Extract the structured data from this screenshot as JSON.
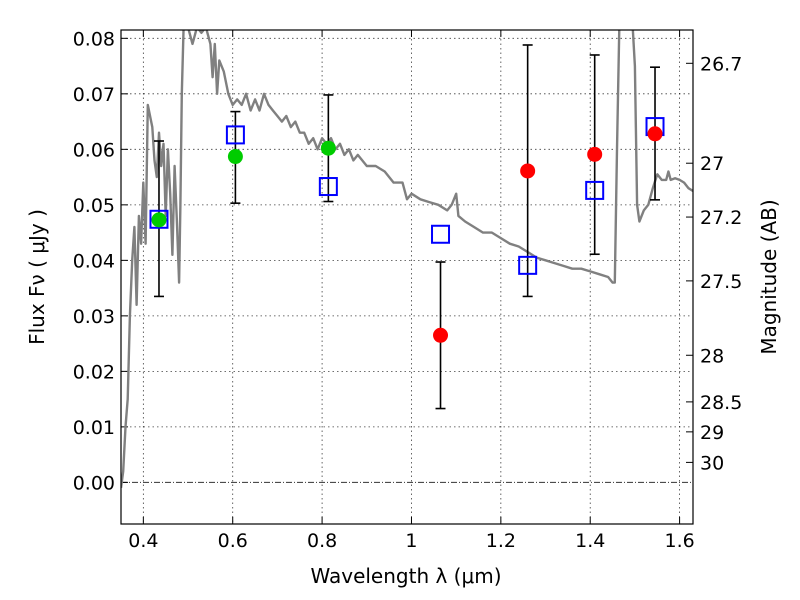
{
  "chart_data": {
    "type": "scatter",
    "title": "",
    "xlabel": "Wavelength  λ (μm)",
    "ylabel": "Flux  Fν  ( μJy )",
    "ylabel_right": "Magnitude (AB)",
    "xlim": [
      0.35,
      1.63
    ],
    "ylim": [
      -0.0075,
      0.0815
    ],
    "grid": true,
    "x_ticks": [
      0.4,
      0.6,
      0.8,
      1.0,
      1.2,
      1.4,
      1.6
    ],
    "x_tick_labels": [
      "0.4",
      "0.6",
      "0.8",
      "1",
      "1.2",
      "1.4",
      "1.6"
    ],
    "y_ticks": [
      0.0,
      0.01,
      0.02,
      0.03,
      0.04,
      0.05,
      0.06,
      0.07,
      0.08
    ],
    "y_tick_labels": [
      "0.00",
      "0.01",
      "0.02",
      "0.03",
      "0.04",
      "0.05",
      "0.06",
      "0.07",
      "0.08"
    ],
    "right_ticks": [
      {
        "label": "26.7",
        "flux": 0.0755
      },
      {
        "label": "27",
        "flux": 0.0575
      },
      {
        "label": "27.2",
        "flux": 0.0478
      },
      {
        "label": "27.5",
        "flux": 0.0363
      },
      {
        "label": "28",
        "flux": 0.0229
      },
      {
        "label": "28.5",
        "flux": 0.0145
      },
      {
        "label": "29",
        "flux": 0.0091
      },
      {
        "label": "30",
        "flux": 0.0036
      }
    ],
    "colors": {
      "green_points": "#00cc00",
      "red_points": "#ff0000",
      "model_boxes": "#0000ff",
      "sed_curve": "#808080",
      "error_bars": "#000000"
    },
    "measurements": [
      {
        "x": 0.435,
        "y": 0.0473,
        "err_low": 0.0335,
        "err_high": 0.0615,
        "color": "green"
      },
      {
        "x": 0.606,
        "y": 0.0587,
        "err_low": 0.0503,
        "err_high": 0.0668,
        "color": "green"
      },
      {
        "x": 0.814,
        "y": 0.0602,
        "err_low": 0.0506,
        "err_high": 0.0698,
        "color": "green"
      },
      {
        "x": 1.065,
        "y": 0.0265,
        "err_low": 0.0133,
        "err_high": 0.0397,
        "color": "red"
      },
      {
        "x": 1.26,
        "y": 0.0561,
        "err_low": 0.0335,
        "err_high": 0.0788,
        "color": "red"
      },
      {
        "x": 1.41,
        "y": 0.0591,
        "err_low": 0.0411,
        "err_high": 0.077,
        "color": "red"
      },
      {
        "x": 1.545,
        "y": 0.0628,
        "err_low": 0.0509,
        "err_high": 0.0748,
        "color": "red"
      }
    ],
    "model_fluxes": [
      {
        "x": 0.435,
        "y": 0.0474
      },
      {
        "x": 0.606,
        "y": 0.0626
      },
      {
        "x": 0.814,
        "y": 0.0533
      },
      {
        "x": 1.065,
        "y": 0.0447
      },
      {
        "x": 1.26,
        "y": 0.0391
      },
      {
        "x": 1.41,
        "y": 0.0526
      },
      {
        "x": 1.545,
        "y": 0.0641
      }
    ],
    "sed_curve": [
      [
        0.35,
        -0.001
      ],
      [
        0.355,
        0.002
      ],
      [
        0.36,
        0.01
      ],
      [
        0.365,
        0.015
      ],
      [
        0.37,
        0.03
      ],
      [
        0.375,
        0.04
      ],
      [
        0.38,
        0.046
      ],
      [
        0.385,
        0.032
      ],
      [
        0.39,
        0.048
      ],
      [
        0.395,
        0.043
      ],
      [
        0.4,
        0.054
      ],
      [
        0.405,
        0.043
      ],
      [
        0.41,
        0.068
      ],
      [
        0.42,
        0.064
      ],
      [
        0.425,
        0.058
      ],
      [
        0.43,
        0.055
      ],
      [
        0.435,
        0.063
      ],
      [
        0.44,
        0.057
      ],
      [
        0.445,
        0.061
      ],
      [
        0.45,
        0.048
      ],
      [
        0.455,
        0.06
      ],
      [
        0.46,
        0.052
      ],
      [
        0.465,
        0.041
      ],
      [
        0.47,
        0.057
      ],
      [
        0.475,
        0.047
      ],
      [
        0.48,
        0.036
      ],
      [
        0.483,
        0.05
      ],
      [
        0.486,
        0.07
      ],
      [
        0.49,
        0.082
      ],
      [
        0.5,
        0.082
      ],
      [
        0.51,
        0.079
      ],
      [
        0.52,
        0.082
      ],
      [
        0.53,
        0.081
      ],
      [
        0.54,
        0.082
      ],
      [
        0.55,
        0.079
      ],
      [
        0.555,
        0.073
      ],
      [
        0.56,
        0.079
      ],
      [
        0.565,
        0.07
      ],
      [
        0.57,
        0.076
      ],
      [
        0.58,
        0.074
      ],
      [
        0.59,
        0.07
      ],
      [
        0.6,
        0.068
      ],
      [
        0.61,
        0.069
      ],
      [
        0.62,
        0.068
      ],
      [
        0.63,
        0.07
      ],
      [
        0.64,
        0.067
      ],
      [
        0.65,
        0.069
      ],
      [
        0.66,
        0.067
      ],
      [
        0.67,
        0.07
      ],
      [
        0.68,
        0.068
      ],
      [
        0.69,
        0.067
      ],
      [
        0.7,
        0.066
      ],
      [
        0.71,
        0.065
      ],
      [
        0.72,
        0.066
      ],
      [
        0.73,
        0.064
      ],
      [
        0.74,
        0.065
      ],
      [
        0.75,
        0.063
      ],
      [
        0.76,
        0.063
      ],
      [
        0.77,
        0.061
      ],
      [
        0.78,
        0.062
      ],
      [
        0.79,
        0.06
      ],
      [
        0.8,
        0.062
      ],
      [
        0.81,
        0.061
      ],
      [
        0.82,
        0.062
      ],
      [
        0.83,
        0.06
      ],
      [
        0.84,
        0.061
      ],
      [
        0.85,
        0.059
      ],
      [
        0.86,
        0.06
      ],
      [
        0.87,
        0.058
      ],
      [
        0.88,
        0.059
      ],
      [
        0.9,
        0.057
      ],
      [
        0.92,
        0.057
      ],
      [
        0.94,
        0.056
      ],
      [
        0.96,
        0.054
      ],
      [
        0.98,
        0.054
      ],
      [
        0.99,
        0.051
      ],
      [
        1.0,
        0.052
      ],
      [
        1.02,
        0.051
      ],
      [
        1.04,
        0.0505
      ],
      [
        1.06,
        0.05
      ],
      [
        1.08,
        0.049
      ],
      [
        1.09,
        0.05
      ],
      [
        1.1,
        0.052
      ],
      [
        1.105,
        0.048
      ],
      [
        1.12,
        0.047
      ],
      [
        1.14,
        0.046
      ],
      [
        1.16,
        0.045
      ],
      [
        1.18,
        0.045
      ],
      [
        1.2,
        0.044
      ],
      [
        1.22,
        0.043
      ],
      [
        1.24,
        0.0425
      ],
      [
        1.26,
        0.0415
      ],
      [
        1.28,
        0.0405
      ],
      [
        1.3,
        0.04
      ],
      [
        1.32,
        0.0395
      ],
      [
        1.34,
        0.039
      ],
      [
        1.36,
        0.0385
      ],
      [
        1.38,
        0.0385
      ],
      [
        1.4,
        0.038
      ],
      [
        1.42,
        0.0375
      ],
      [
        1.44,
        0.037
      ],
      [
        1.45,
        0.036
      ],
      [
        1.455,
        0.036
      ],
      [
        1.46,
        0.06
      ],
      [
        1.465,
        0.082
      ],
      [
        1.495,
        0.082
      ],
      [
        1.5,
        0.075
      ],
      [
        1.505,
        0.05
      ],
      [
        1.51,
        0.047
      ],
      [
        1.52,
        0.049
      ],
      [
        1.53,
        0.05
      ],
      [
        1.54,
        0.053
      ],
      [
        1.55,
        0.0555
      ],
      [
        1.56,
        0.0545
      ],
      [
        1.57,
        0.0545
      ],
      [
        1.575,
        0.056
      ],
      [
        1.58,
        0.0545
      ],
      [
        1.59,
        0.0548
      ],
      [
        1.6,
        0.0545
      ],
      [
        1.61,
        0.054
      ],
      [
        1.62,
        0.053
      ],
      [
        1.63,
        0.0525
      ]
    ]
  }
}
